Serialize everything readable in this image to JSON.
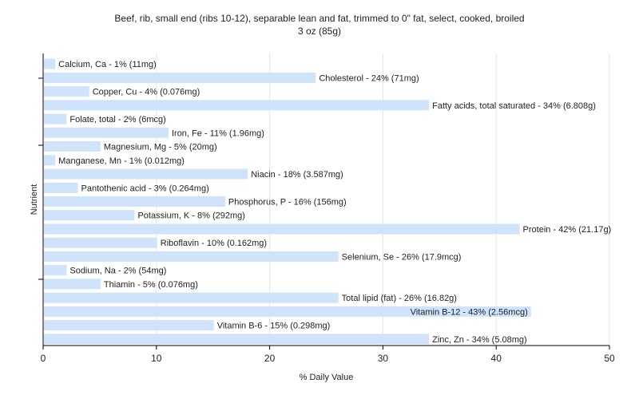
{
  "chart_data": {
    "type": "bar",
    "orientation": "horizontal",
    "title": "Beef, rib, small end (ribs 10-12), separable lean and fat, trimmed to 0\" fat, select, cooked, broiled",
    "subtitle": "3 oz (85g)",
    "xlabel": "% Daily Value",
    "ylabel": "Nutrient",
    "xlim": [
      0,
      50
    ],
    "xticks": [
      0,
      10,
      20,
      30,
      40,
      50
    ],
    "grid": true,
    "bar_color": "#cfe3fb",
    "categories": [
      "Calcium, Ca",
      "Cholesterol",
      "Copper, Cu",
      "Fatty acids, total saturated",
      "Folate, total",
      "Iron, Fe",
      "Magnesium, Mg",
      "Manganese, Mn",
      "Niacin",
      "Pantothenic acid",
      "Phosphorus, P",
      "Potassium, K",
      "Protein",
      "Riboflavin",
      "Selenium, Se",
      "Sodium, Na",
      "Thiamin",
      "Total lipid (fat)",
      "Vitamin B-12",
      "Vitamin B-6",
      "Zinc, Zn"
    ],
    "values": [
      1,
      24,
      4,
      34,
      2,
      11,
      5,
      1,
      18,
      3,
      16,
      8,
      42,
      10,
      26,
      2,
      5,
      26,
      43,
      15,
      34
    ],
    "labels": [
      "Calcium, Ca - 1% (11mg)",
      "Cholesterol - 24% (71mg)",
      "Copper, Cu - 4% (0.076mg)",
      "Fatty acids, total saturated - 34% (6.808g)",
      "Folate, total - 2% (6mcg)",
      "Iron, Fe - 11% (1.96mg)",
      "Magnesium, Mg - 5% (20mg)",
      "Manganese, Mn - 1% (0.012mg)",
      "Niacin - 18% (3.587mg)",
      "Pantothenic acid - 3% (0.264mg)",
      "Phosphorus, P - 16% (156mg)",
      "Potassium, K - 8% (292mg)",
      "Protein - 42% (21.17g)",
      "Riboflavin - 10% (0.162mg)",
      "Selenium, Se - 26% (17.9mcg)",
      "Sodium, Na - 2% (54mg)",
      "Thiamin - 5% (0.076mg)",
      "Total lipid (fat) - 26% (16.82g)",
      "Vitamin B-12 - 43% (2.56mcg)",
      "Vitamin B-6 - 15% (0.298mg)",
      "Zinc, Zn - 34% (5.08mg)"
    ]
  }
}
